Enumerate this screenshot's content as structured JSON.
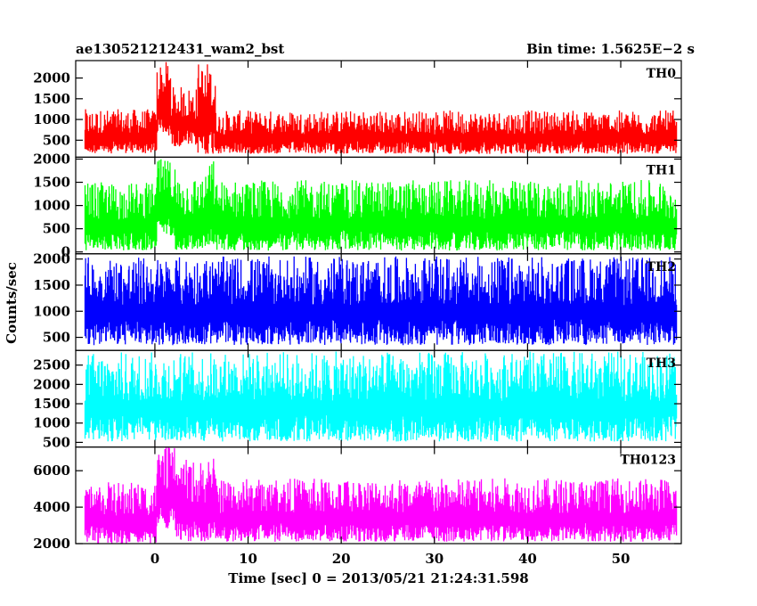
{
  "header": {
    "left": "ae130521212431_wam2_bst",
    "right": "Bin time: 1.5625E−2 s"
  },
  "chart_data": {
    "type": "line",
    "xlabel": "Time [sec] 0 = 2013/05/21 21:24:31.598",
    "ylabel": "Counts/sec",
    "xlim": [
      -8.5,
      56.5
    ],
    "x_ticks": [
      0,
      10,
      20,
      30,
      40,
      50
    ],
    "x_tick_labels": [
      "0",
      "10",
      "20",
      "30",
      "40",
      "50"
    ],
    "x_range_data": [
      -7.5,
      56
    ],
    "bin_time_s": 0.015625,
    "panels": [
      {
        "label": "TH0",
        "color": "#ff0000",
        "ylim": [
          90,
          2420
        ],
        "y_ticks": [
          500,
          1000,
          1500,
          2000
        ],
        "y_tick_labels": [
          "500",
          "1000",
          "1500",
          "2000"
        ],
        "segments": [
          {
            "x": [
              -7.5,
              0.2
            ],
            "low": 180,
            "high": 1250
          },
          {
            "x": [
              0.2,
              1.7
            ],
            "low": 600,
            "high": 2400
          },
          {
            "x": [
              1.7,
              4.6
            ],
            "low": 350,
            "high": 1800
          },
          {
            "x": [
              4.6,
              6.5
            ],
            "low": 150,
            "high": 2400
          },
          {
            "x": [
              6.5,
              56
            ],
            "low": 170,
            "high": 1220
          }
        ]
      },
      {
        "label": "TH1",
        "color": "#00ff00",
        "ylim": [
          -40,
          2040
        ],
        "y_ticks": [
          0,
          500,
          1000,
          1500,
          2000
        ],
        "y_tick_labels": [
          "0",
          "500",
          "1000",
          "1500",
          "2000"
        ],
        "segments": [
          {
            "x": [
              -7.5,
              0.2
            ],
            "low": 30,
            "high": 1500
          },
          {
            "x": [
              0.2,
              2.2
            ],
            "low": 350,
            "high": 2000
          },
          {
            "x": [
              2.2,
              5.5
            ],
            "low": 40,
            "high": 1650
          },
          {
            "x": [
              5.5,
              6.5
            ],
            "low": 150,
            "high": 2000
          },
          {
            "x": [
              6.5,
              56
            ],
            "low": 30,
            "high": 1550
          }
        ]
      },
      {
        "label": "TH2",
        "color": "#0000ff",
        "ylim": [
          250,
          2100
        ],
        "y_ticks": [
          500,
          1000,
          1500,
          2000
        ],
        "y_tick_labels": [
          "500",
          "1000",
          "1500",
          "2000"
        ],
        "segments": [
          {
            "x": [
              -7.5,
              56
            ],
            "low": 350,
            "high": 2050
          }
        ]
      },
      {
        "label": "TH3",
        "color": "#00ffff",
        "ylim": [
          380,
          2880
        ],
        "y_ticks": [
          500,
          1000,
          1500,
          2000,
          2500
        ],
        "y_tick_labels": [
          "500",
          "1000",
          "1500",
          "2000",
          "2500"
        ],
        "segments": [
          {
            "x": [
              -7.5,
              56
            ],
            "low": 520,
            "high": 2850
          }
        ]
      },
      {
        "label": "TH0123",
        "color": "#ff00ff",
        "ylim": [
          2000,
          7300
        ],
        "y_ticks": [
          2000,
          4000,
          6000
        ],
        "y_tick_labels": [
          "2000",
          "4000",
          "6000"
        ],
        "segments": [
          {
            "x": [
              -7.5,
              0.2
            ],
            "low": 2000,
            "high": 5400
          },
          {
            "x": [
              0.2,
              2.2
            ],
            "low": 2800,
            "high": 7300
          },
          {
            "x": [
              2.2,
              5.5
            ],
            "low": 2100,
            "high": 6600
          },
          {
            "x": [
              5.5,
              6.5
            ],
            "low": 2200,
            "high": 6900
          },
          {
            "x": [
              6.5,
              56
            ],
            "low": 2100,
            "high": 5600
          }
        ]
      }
    ]
  }
}
